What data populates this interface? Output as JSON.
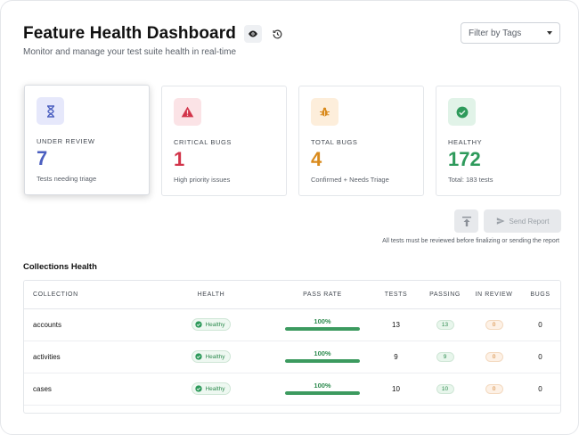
{
  "header": {
    "title": "Feature Health Dashboard",
    "subtitle": "Monitor and manage your test suite health in real-time"
  },
  "filter": {
    "label": "Filter by Tags"
  },
  "cards": [
    {
      "label": "UNDER REVIEW",
      "value": "7",
      "sub": "Tests needing triage",
      "color": "#4b5fc0",
      "icon": "hourglass-icon"
    },
    {
      "label": "CRITICAL BUGS",
      "value": "1",
      "sub": "High priority issues",
      "color": "#d2344a",
      "icon": "warning-icon"
    },
    {
      "label": "TOTAL BUGS",
      "value": "4",
      "sub": "Confirmed + Needs Triage",
      "color": "#d98a1c",
      "icon": "bug-icon"
    },
    {
      "label": "HEALTHY",
      "value": "172",
      "sub": "Total: 183 tests",
      "color": "#2e9a5b",
      "icon": "check-circle-icon"
    }
  ],
  "actions": {
    "send_label": "Send Report",
    "note": "All tests must be reviewed before finalizing or sending the report"
  },
  "collections": {
    "title": "Collections Health",
    "columns": [
      "COLLECTION",
      "HEALTH",
      "PASS RATE",
      "TESTS",
      "PASSING",
      "IN REVIEW",
      "BUGS"
    ],
    "rows": [
      {
        "name": "accounts",
        "health": "Healthy",
        "pass_rate": "100%",
        "pass_fraction": 1.0,
        "tests": "13",
        "passing": "13",
        "in_review": "0",
        "bugs": "0"
      },
      {
        "name": "activities",
        "health": "Healthy",
        "pass_rate": "100%",
        "pass_fraction": 1.0,
        "tests": "9",
        "passing": "9",
        "in_review": "0",
        "bugs": "0"
      },
      {
        "name": "cases",
        "health": "Healthy",
        "pass_rate": "100%",
        "pass_fraction": 1.0,
        "tests": "10",
        "passing": "10",
        "in_review": "0",
        "bugs": "0"
      }
    ]
  }
}
